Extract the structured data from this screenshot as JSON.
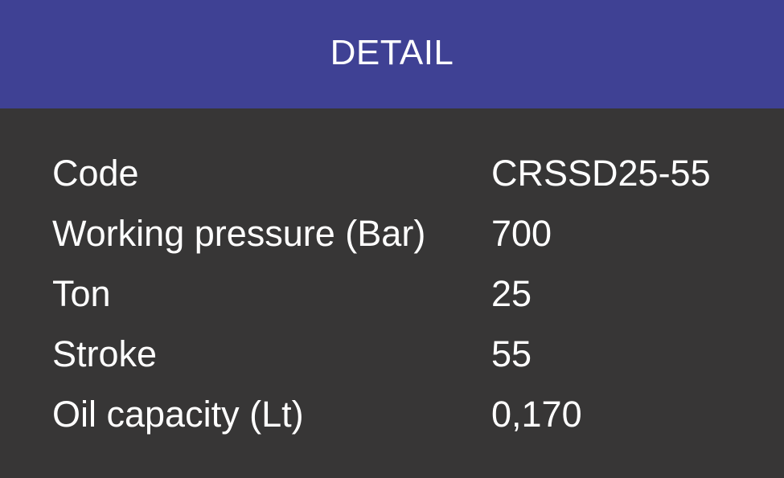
{
  "header": {
    "title": "DETAIL"
  },
  "details": [
    {
      "label": "Code",
      "value": "CRSSD25-55"
    },
    {
      "label": "Working pressure (Bar)",
      "value": "700"
    },
    {
      "label": "Ton",
      "value": "25"
    },
    {
      "label": "Stroke",
      "value": "55"
    },
    {
      "label": "Oil capacity (Lt)",
      "value": "0,170"
    }
  ],
  "colors": {
    "header_bg": "#3f4194",
    "body_bg": "#373636",
    "text": "#ffffff"
  }
}
